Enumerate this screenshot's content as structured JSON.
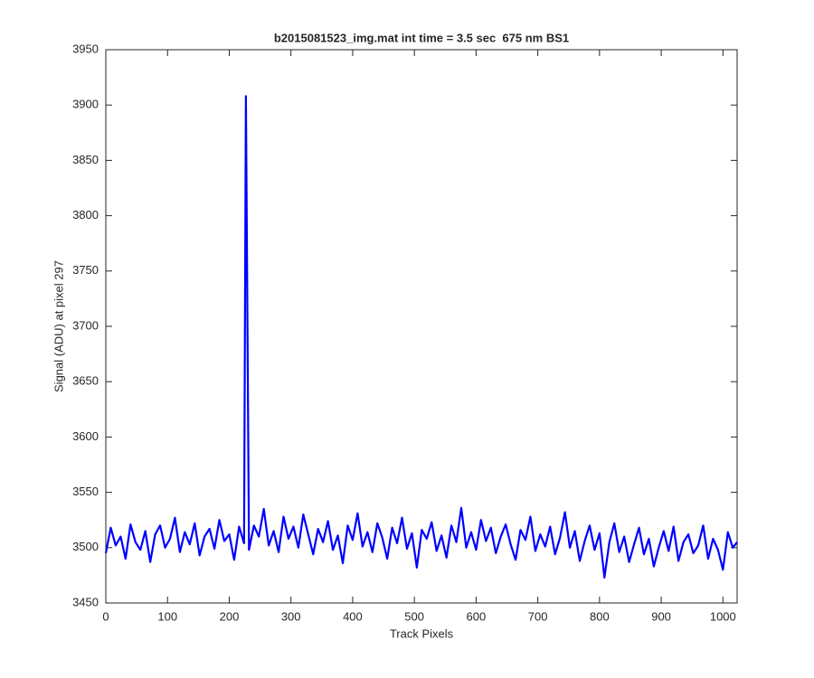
{
  "chart_data": {
    "type": "line",
    "title": "b2015081523_img.mat int time = 3.5 sec  675 nm BS1",
    "xlabel": "Track Pixels",
    "ylabel": "Signal (ADU) at pixel 297",
    "xlim": [
      0,
      1023
    ],
    "xticks": [
      0,
      100,
      200,
      300,
      400,
      500,
      600,
      700,
      800,
      900,
      1000
    ],
    "ylim": [
      3450,
      3950
    ],
    "yticks": [
      3450,
      3500,
      3550,
      3600,
      3650,
      3700,
      3750,
      3800,
      3850,
      3900,
      3950
    ],
    "grid": false,
    "series": [
      {
        "color": "#0000ff",
        "x": [
          0,
          8,
          16,
          24,
          32,
          40,
          48,
          56,
          64,
          72,
          80,
          88,
          96,
          104,
          112,
          120,
          128,
          136,
          144,
          152,
          160,
          168,
          176,
          184,
          192,
          200,
          208,
          216,
          224,
          227,
          232,
          240,
          248,
          256,
          264,
          272,
          280,
          288,
          296,
          304,
          312,
          320,
          328,
          336,
          344,
          352,
          360,
          368,
          376,
          384,
          392,
          400,
          408,
          416,
          424,
          432,
          440,
          448,
          456,
          464,
          472,
          480,
          488,
          496,
          504,
          512,
          520,
          528,
          536,
          544,
          552,
          560,
          568,
          576,
          584,
          592,
          600,
          608,
          616,
          624,
          632,
          640,
          648,
          656,
          664,
          672,
          680,
          688,
          696,
          704,
          712,
          720,
          728,
          736,
          744,
          752,
          760,
          768,
          776,
          784,
          792,
          800,
          808,
          816,
          824,
          832,
          840,
          848,
          856,
          864,
          872,
          880,
          888,
          896,
          904,
          912,
          920,
          928,
          936,
          944,
          952,
          960,
          968,
          976,
          984,
          992,
          1000,
          1008,
          1016,
          1023
        ],
        "values": [
          3495,
          3518,
          3502,
          3510,
          3490,
          3521,
          3505,
          3498,
          3515,
          3487,
          3512,
          3520,
          3500,
          3508,
          3527,
          3496,
          3514,
          3503,
          3522,
          3493,
          3510,
          3517,
          3499,
          3525,
          3506,
          3512,
          3489,
          3519,
          3504,
          3908,
          3498,
          3520,
          3510,
          3535,
          3502,
          3515,
          3496,
          3528,
          3508,
          3519,
          3500,
          3530,
          3512,
          3494,
          3517,
          3505,
          3524,
          3498,
          3511,
          3486,
          3520,
          3507,
          3531,
          3501,
          3514,
          3496,
          3522,
          3509,
          3490,
          3518,
          3504,
          3527,
          3499,
          3513,
          3482,
          3516,
          3508,
          3523,
          3497,
          3511,
          3491,
          3520,
          3505,
          3536,
          3500,
          3514,
          3498,
          3525,
          3506,
          3518,
          3495,
          3510,
          3521,
          3503,
          3489,
          3516,
          3507,
          3528,
          3497,
          3512,
          3501,
          3519,
          3494,
          3509,
          3532,
          3500,
          3515,
          3488,
          3506,
          3520,
          3498,
          3513,
          3473,
          3505,
          3522,
          3496,
          3510,
          3487,
          3503,
          3518,
          3494,
          3508,
          3483,
          3500,
          3515,
          3497,
          3519,
          3488,
          3505,
          3512,
          3495,
          3502,
          3520,
          3490,
          3508,
          3498,
          3480,
          3514,
          3500,
          3505
        ]
      }
    ]
  }
}
